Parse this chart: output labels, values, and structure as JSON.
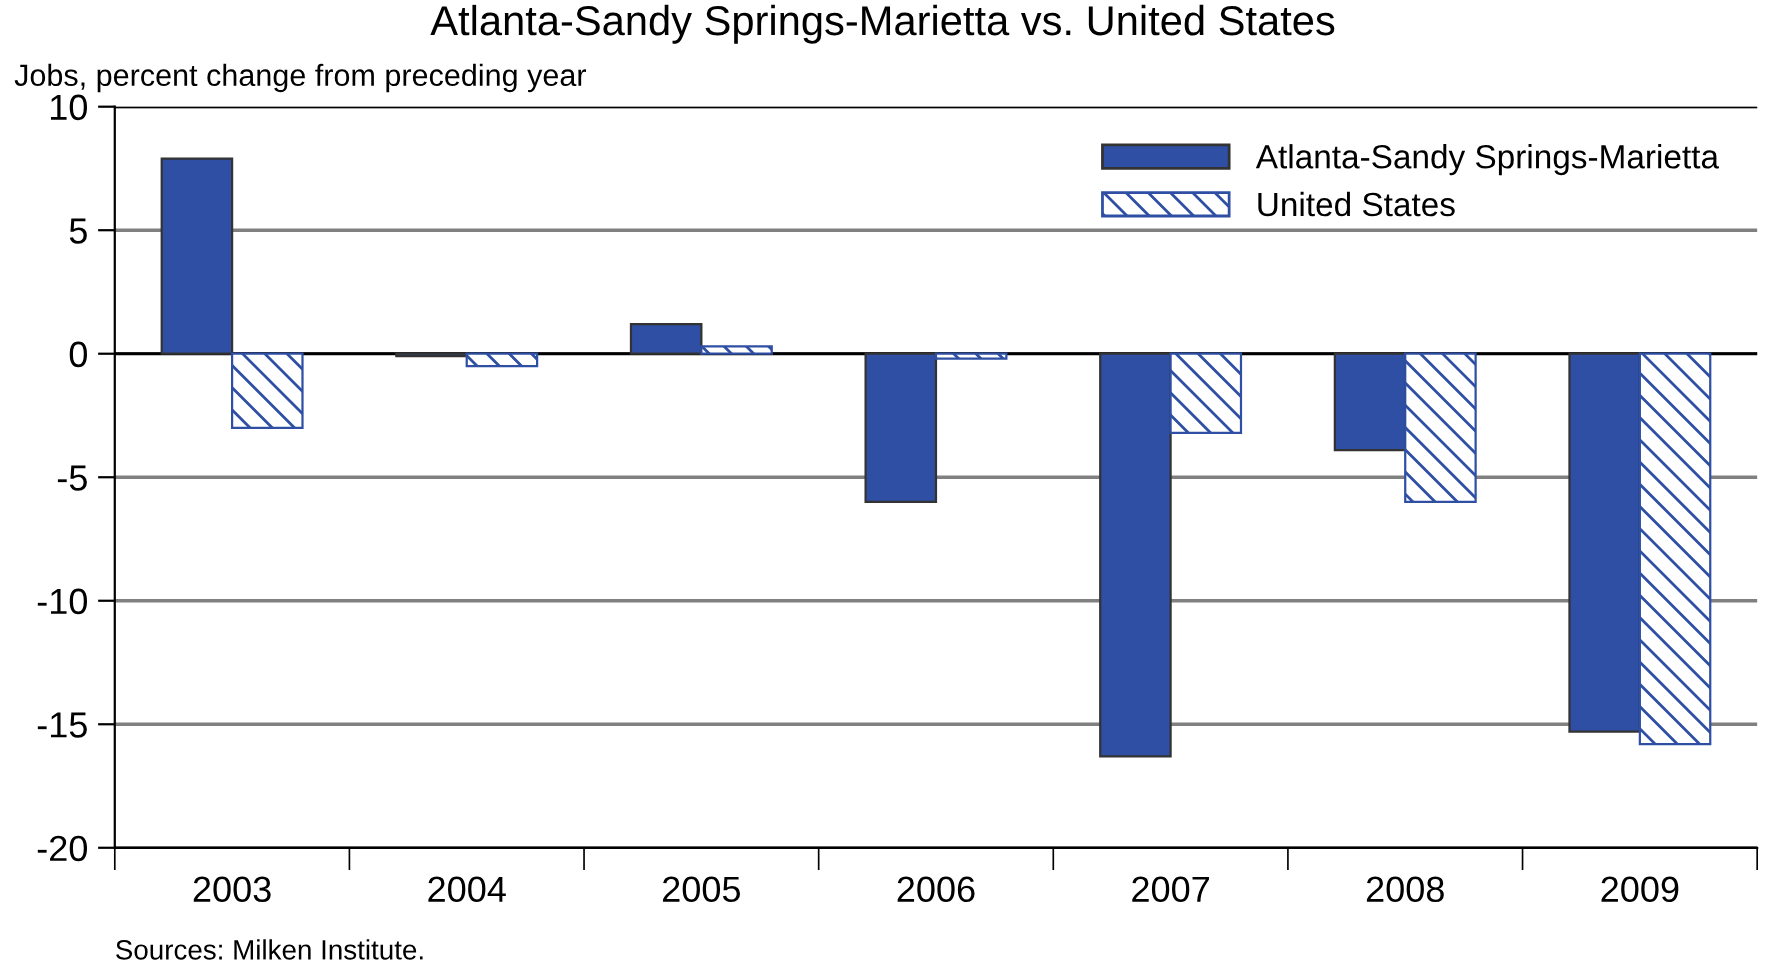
{
  "chart_data": {
    "type": "bar",
    "title": "Atlanta-Sandy Springs-Marietta vs. United States",
    "ylabel": "Jobs, percent change from preceding year",
    "categories": [
      "2003",
      "2004",
      "2005",
      "2006",
      "2007",
      "2008",
      "2009"
    ],
    "series": [
      {
        "name": "Atlanta-Sandy Springs-Marietta",
        "color": "#2e4fa3",
        "values": [
          7.9,
          -0.1,
          1.2,
          -6.0,
          -16.3,
          -3.9,
          -15.3
        ]
      },
      {
        "name": "United States",
        "color": "#2e4fa3",
        "values": [
          -3.0,
          -0.5,
          0.3,
          -0.2,
          -3.2,
          -6.0,
          -15.8
        ]
      }
    ],
    "ylim": [
      -20,
      10
    ],
    "yticks": [
      -20,
      -15,
      -10,
      -5,
      0,
      5,
      10
    ],
    "grid": "y",
    "legend": "top right",
    "annotations": [
      "Sources: Milken Institute."
    ]
  }
}
